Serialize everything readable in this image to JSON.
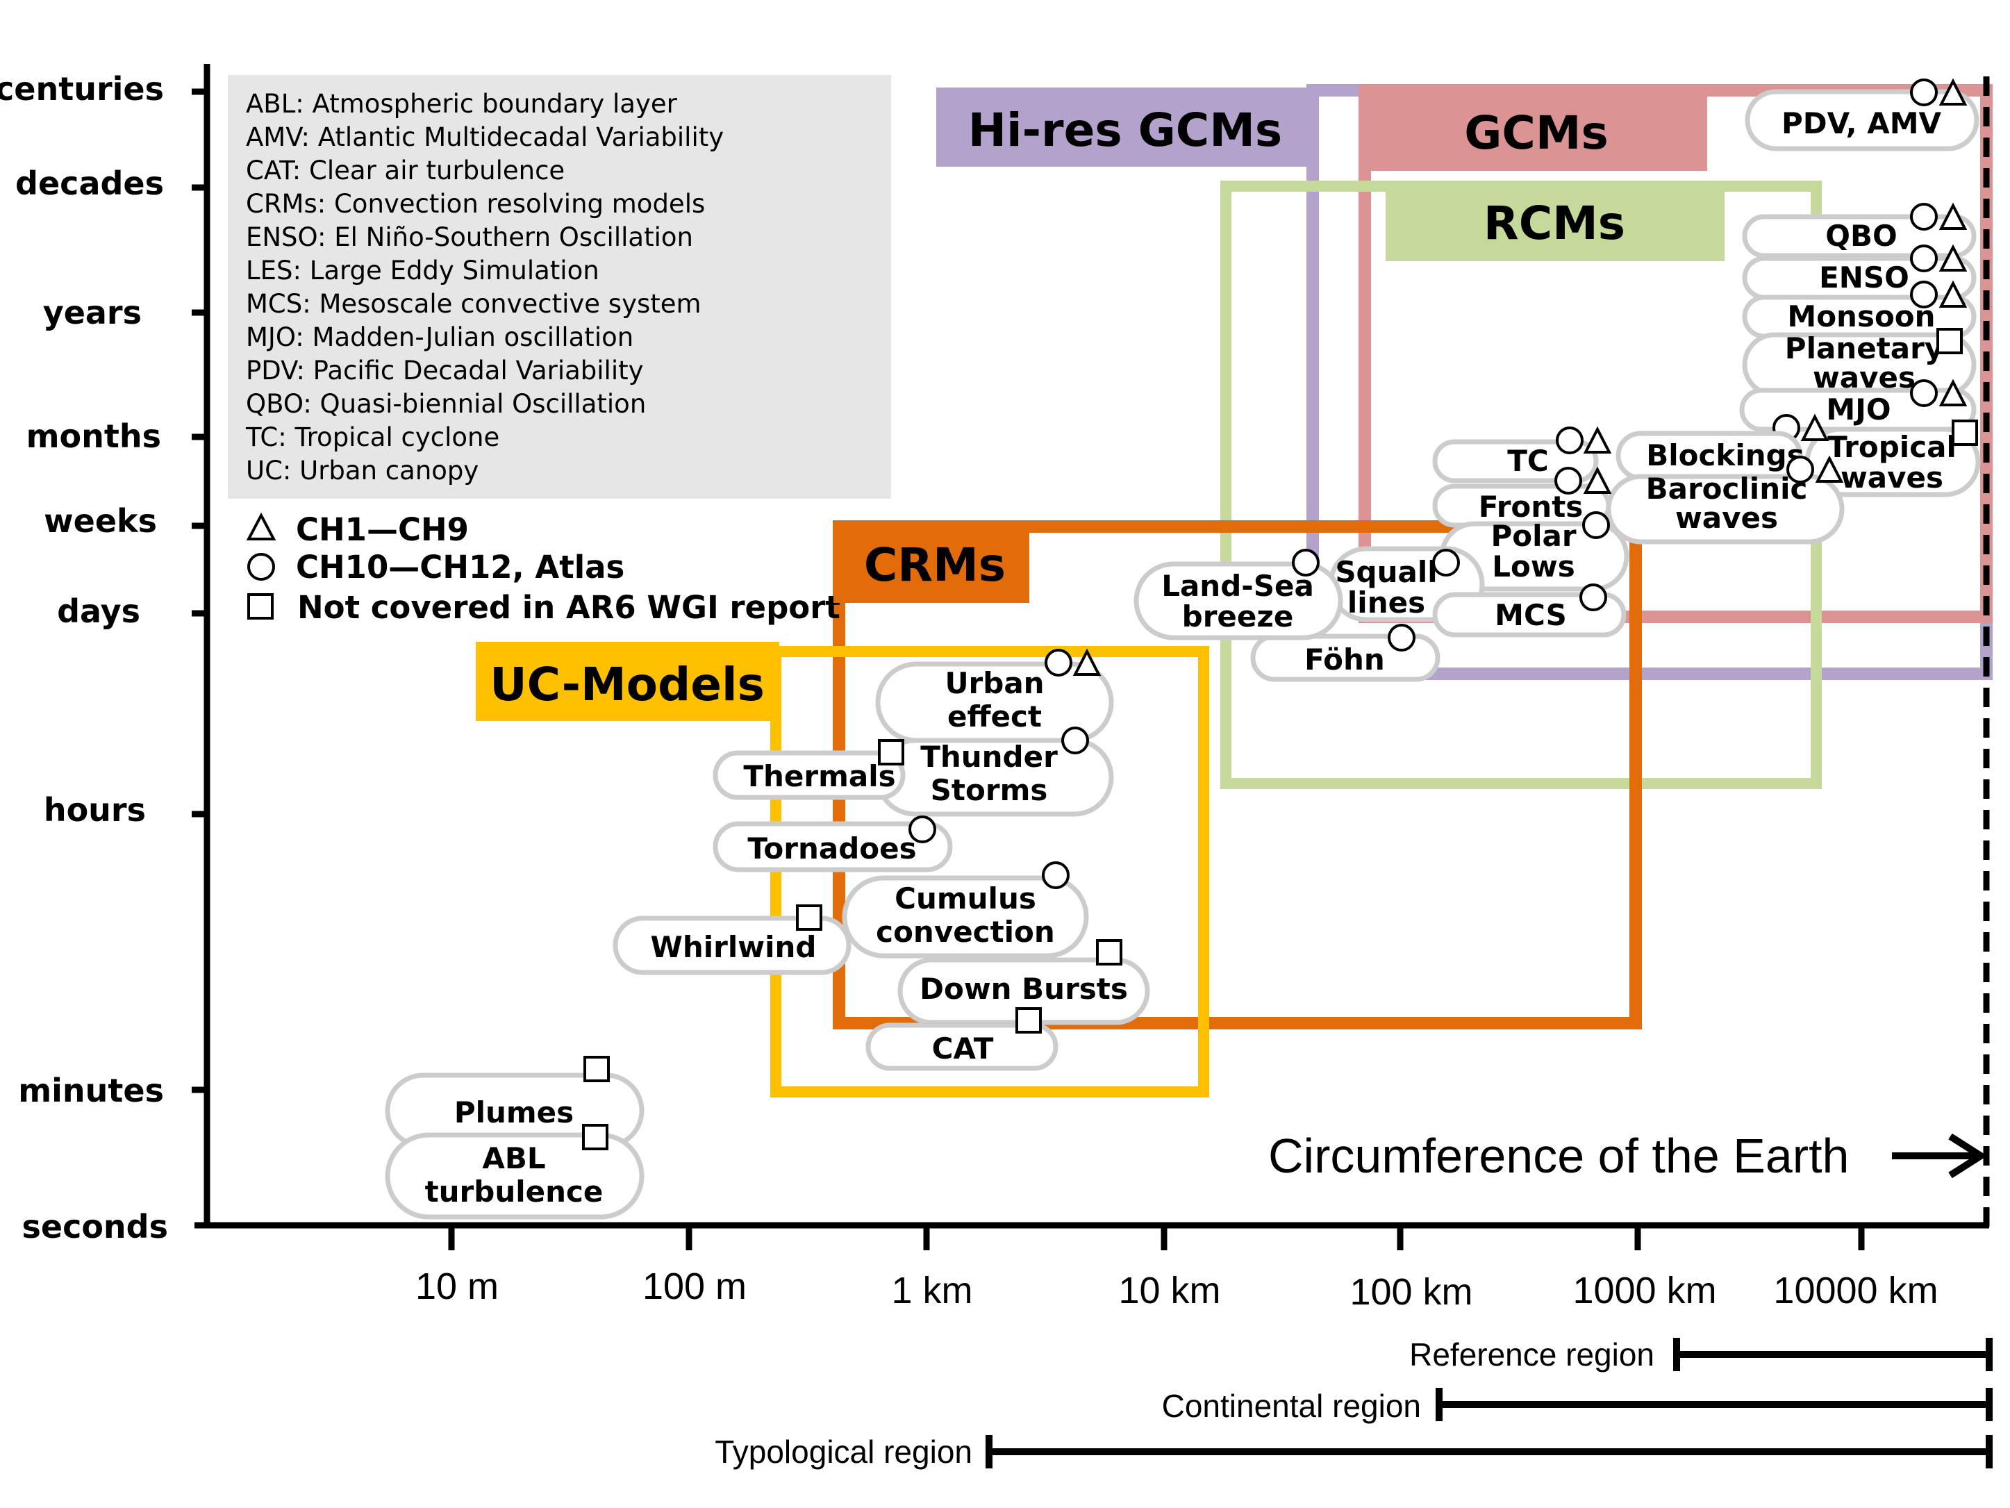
{
  "y_axis": {
    "ticks": [
      {
        "name": "centuries",
        "label": "centuries"
      },
      {
        "name": "decades",
        "label": "decades"
      },
      {
        "name": "years",
        "label": "years"
      },
      {
        "name": "months",
        "label": "months"
      },
      {
        "name": "weeks",
        "label": "weeks"
      },
      {
        "name": "days",
        "label": "days"
      },
      {
        "name": "hours",
        "label": "hours"
      },
      {
        "name": "minutes",
        "label": "minutes"
      },
      {
        "name": "seconds",
        "label": "seconds"
      }
    ]
  },
  "x_axis": {
    "ticks": [
      {
        "name": "10m",
        "label": "10 m"
      },
      {
        "name": "100m",
        "label": "100 m"
      },
      {
        "name": "1km",
        "label": "1 km"
      },
      {
        "name": "10km",
        "label": "10 km"
      },
      {
        "name": "100km",
        "label": "100 km"
      },
      {
        "name": "1000km",
        "label": "1000 km"
      },
      {
        "name": "10000km",
        "label": "10000 km"
      }
    ]
  },
  "glossary": [
    "ABL: Atmospheric boundary layer",
    "AMV: Atlantic Multidecadal Variability",
    "CAT: Clear air turbulence",
    "CRMs: Convection resolving models",
    "ENSO: El Niño-Southern Oscillation",
    "LES: Large Eddy Simulation",
    "MCS: Mesoscale convective system",
    "MJO: Madden-Julian oscillation",
    "PDV: Pacific Decadal Variability",
    "QBO: Quasi-biennial Oscillation",
    "TC: Tropical cyclone",
    "UC: Urban canopy"
  ],
  "legend": {
    "triangle": "CH1—CH9",
    "circle": "CH10—CH12, Atlas",
    "square": "Not covered in AR6 WGI report"
  },
  "models": {
    "hires_gcms": {
      "label": "Hi-res GCMs",
      "color": "#b3a3cc"
    },
    "gcms": {
      "label": "GCMs",
      "color": "#dc9393"
    },
    "rcms": {
      "label": "RCMs",
      "color": "#c5d99b"
    },
    "crms": {
      "label": "CRMs",
      "color": "#e36c0a"
    },
    "uc_models": {
      "label": "UC-Models",
      "color": "#ffc000"
    }
  },
  "phenomena": {
    "pdv_amv": {
      "label": "PDV, AMV",
      "markers": [
        "circle",
        "triangle"
      ]
    },
    "qbo": {
      "label": "QBO",
      "markers": [
        "circle",
        "triangle"
      ]
    },
    "enso": {
      "label": "ENSO",
      "markers": [
        "circle",
        "triangle"
      ]
    },
    "monsoon": {
      "label": "Monsoon",
      "markers": [
        "circle",
        "triangle"
      ]
    },
    "planetary_waves": {
      "line1": "Planetary",
      "line2": "waves",
      "markers": [
        "square"
      ]
    },
    "mjo": {
      "label": "MJO",
      "markers": [
        "circle",
        "triangle"
      ]
    },
    "tropical_waves": {
      "line1": "Tropical",
      "line2": "waves",
      "markers": [
        "circle",
        "triangle",
        "square"
      ]
    },
    "tc": {
      "label": "TC",
      "markers": [
        "circle",
        "triangle"
      ]
    },
    "blockings": {
      "label": "Blockings",
      "markers": [
        "circle",
        "triangle"
      ]
    },
    "baroclinic_waves": {
      "line1": "Baroclinic",
      "line2": "waves"
    },
    "fronts": {
      "label": "Fronts",
      "markers": [
        "circle",
        "triangle"
      ]
    },
    "polar_lows": {
      "line1": "Polar",
      "line2": "Lows",
      "markers": [
        "circle"
      ]
    },
    "land_sea_breeze": {
      "line1": "Land-Sea",
      "line2": "breeze",
      "markers": [
        "circle"
      ]
    },
    "squall_lines": {
      "line1": "Squall",
      "line2": "lines",
      "markers": [
        "circle"
      ]
    },
    "mcs": {
      "label": "MCS",
      "markers": [
        "circle"
      ]
    },
    "fohn": {
      "label": "Föhn",
      "markers": [
        "circle"
      ]
    },
    "urban_effect": {
      "line1": "Urban",
      "line2": "effect",
      "markers": [
        "circle",
        "triangle"
      ]
    },
    "thunder_storms": {
      "line1": "Thunder",
      "line2": "Storms",
      "markers": [
        "circle"
      ]
    },
    "thermals": {
      "label": "Thermals",
      "markers": [
        "square"
      ]
    },
    "tornadoes": {
      "label": "Tornadoes",
      "markers": [
        "circle"
      ]
    },
    "cumulus_convection": {
      "line1": "Cumulus",
      "line2": "convection",
      "markers": [
        "circle"
      ]
    },
    "whirlwind": {
      "label": "Whirlwind",
      "markers": [
        "square"
      ]
    },
    "down_bursts": {
      "label": "Down Bursts",
      "markers": [
        "square"
      ]
    },
    "cat": {
      "label": "CAT",
      "markers": [
        "square"
      ]
    },
    "plumes": {
      "label": "Plumes",
      "markers": [
        "square"
      ]
    },
    "abl_turbulence": {
      "line1": "ABL",
      "line2": "turbulence",
      "markers": [
        "square"
      ]
    }
  },
  "circumference": "Circumference of the Earth",
  "regions": {
    "reference": "Reference region",
    "continental": "Continental region",
    "typological": "Typological region"
  }
}
